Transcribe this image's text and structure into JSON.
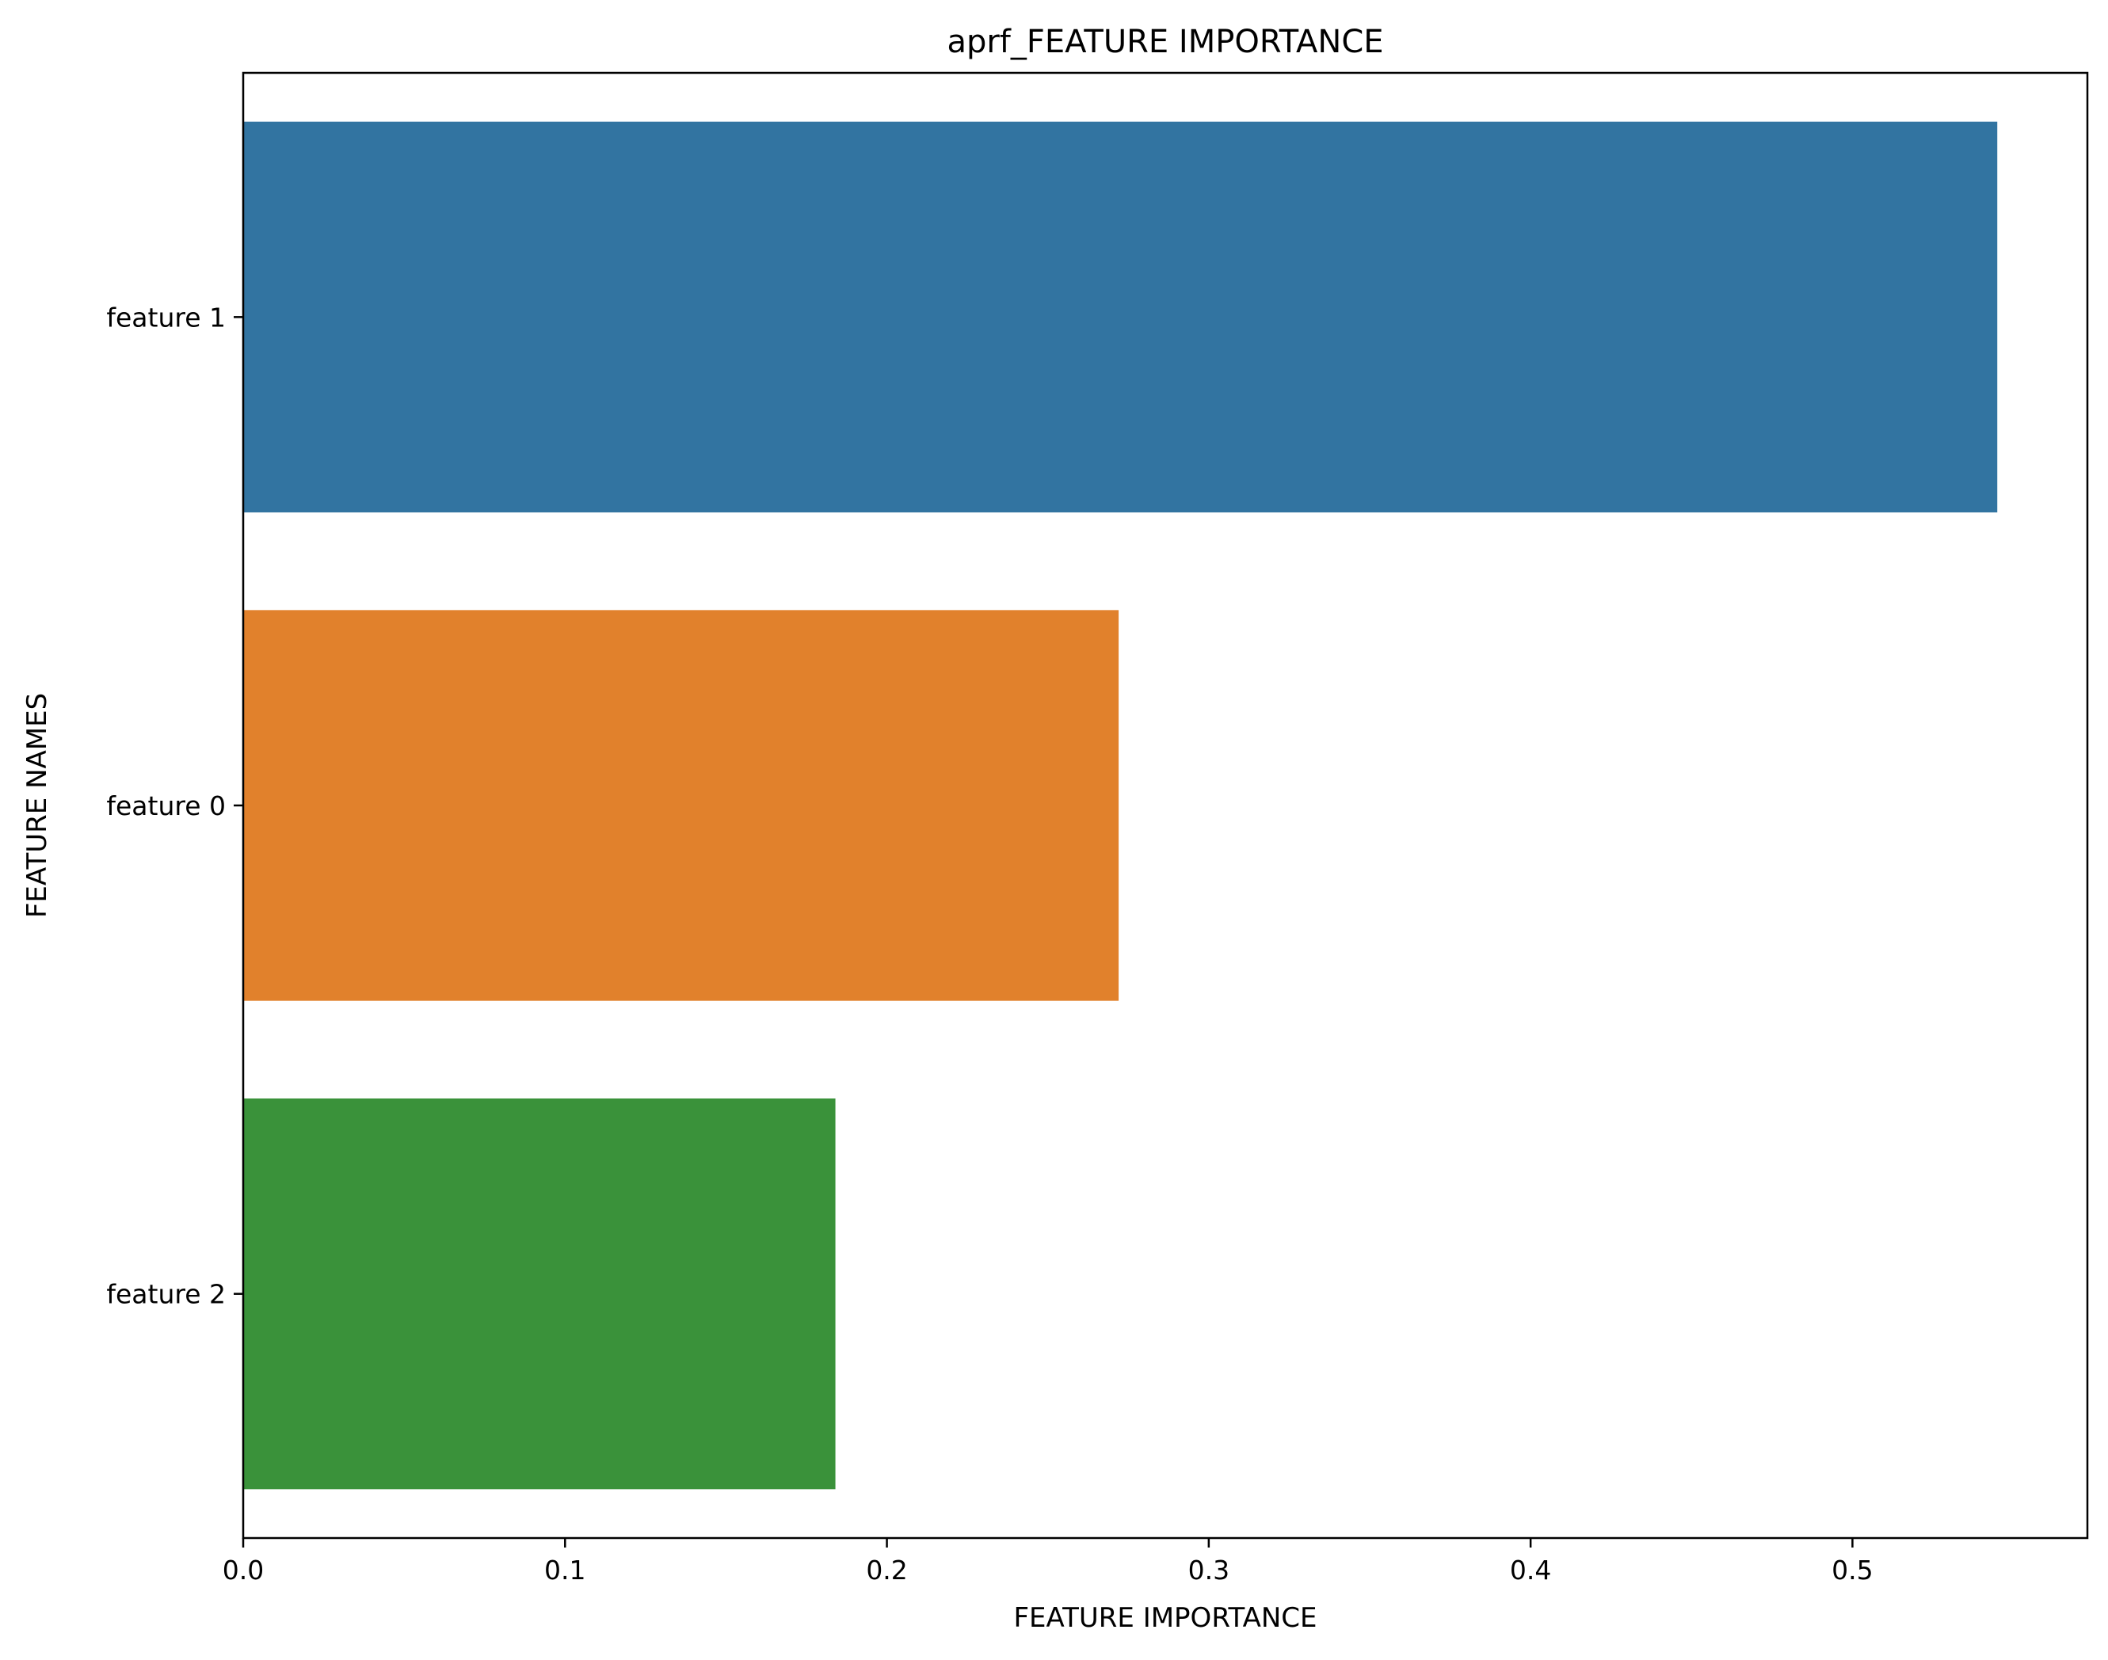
{
  "chart_data": {
    "type": "bar",
    "orientation": "horizontal",
    "title": "aprf_FEATURE IMPORTANCE",
    "xlabel": "FEATURE IMPORTANCE",
    "ylabel": "FEATURE NAMES",
    "categories": [
      "feature 1",
      "feature 0",
      "feature 2"
    ],
    "values": [
      0.545,
      0.272,
      0.184
    ],
    "colors": [
      "#3274a1",
      "#e1812c",
      "#3a923a"
    ],
    "xlim": [
      0,
      0.573
    ],
    "xticks": [
      0.0,
      0.1,
      0.2,
      0.3,
      0.4,
      0.5
    ],
    "xtick_labels": [
      "0.0",
      "0.1",
      "0.2",
      "0.3",
      "0.4",
      "0.5"
    ],
    "grid": false,
    "legend": "none"
  }
}
